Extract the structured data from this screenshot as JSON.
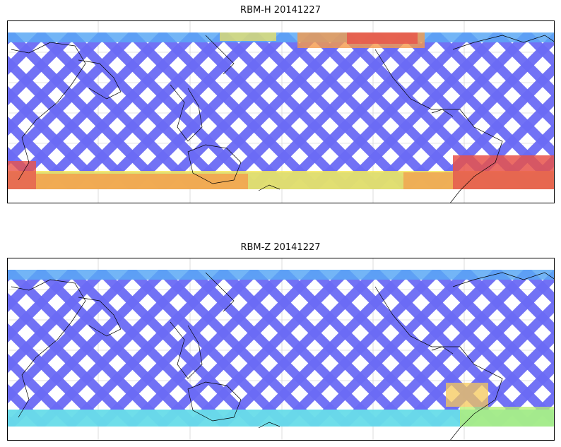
{
  "figure": {
    "panels": [
      {
        "title": "RBM-H 20141227",
        "colors": {
          "track": "#6b6bf5",
          "track_alt": "#5aa8f5",
          "high_1": "#f5e65a",
          "high_2": "#f59a4a",
          "high_3": "#e8524a"
        }
      },
      {
        "title": "RBM-Z 20141227",
        "colors": {
          "track": "#6b6bf5",
          "track_alt": "#5aa8f5",
          "high_1": "#6ef0e6",
          "high_2": "#b8f06e",
          "high_3": "#f5c85a"
        }
      }
    ],
    "colormap": [
      "#6b6bf5",
      "#5aa8f5",
      "#6ef0e6",
      "#b8f06e",
      "#f5e65a",
      "#f59a4a",
      "#e8524a"
    ],
    "coastline_color": "#000000",
    "gridline_color": "#c8c8c8"
  }
}
